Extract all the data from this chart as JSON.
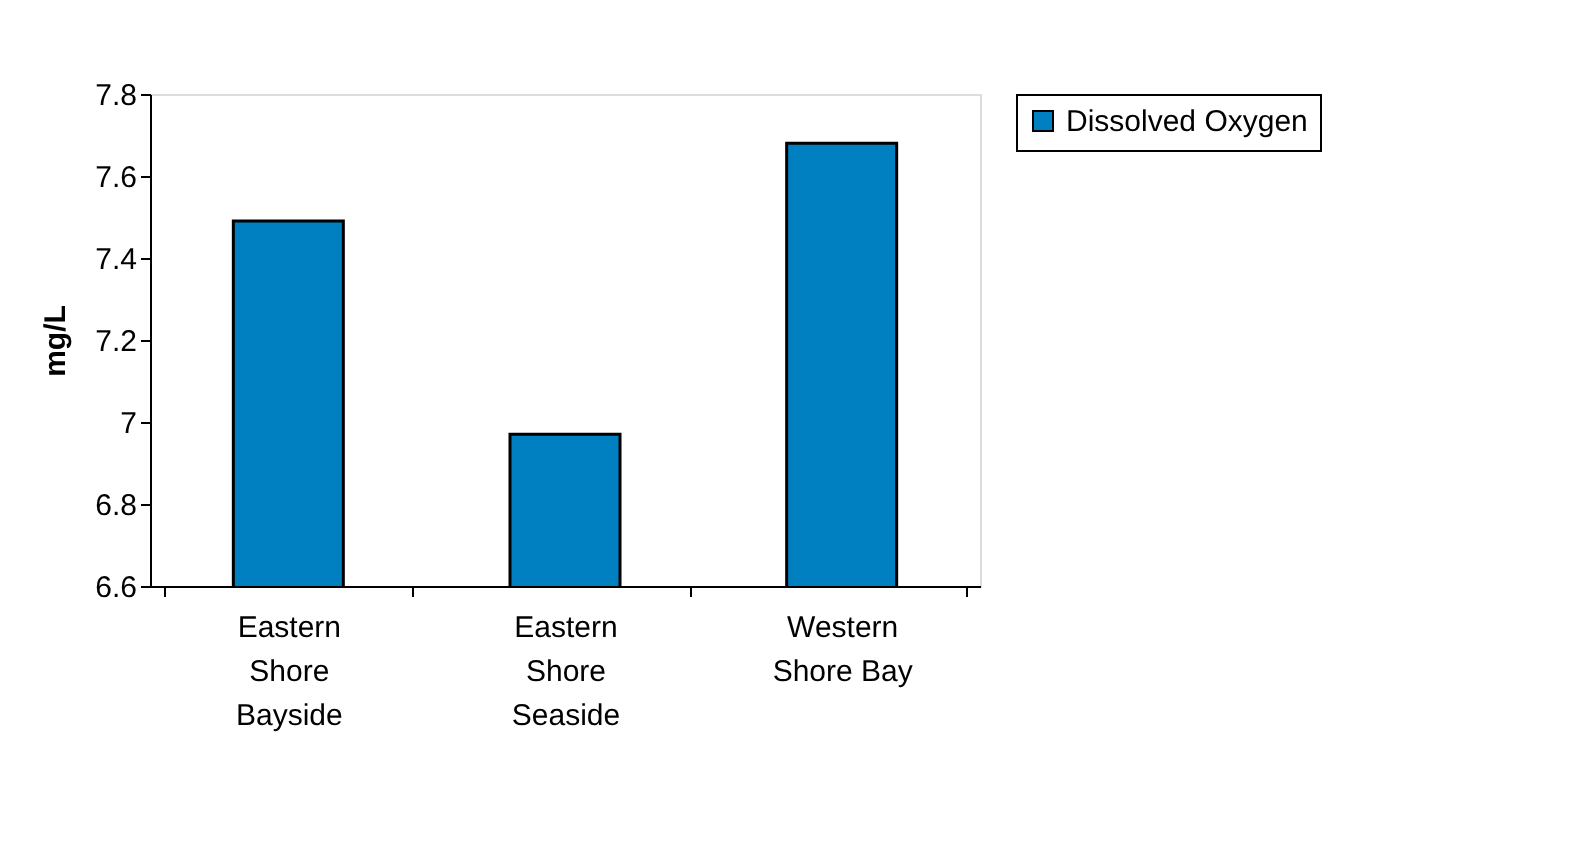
{
  "chart_data": {
    "type": "bar",
    "ylabel": "mg/L",
    "categories": [
      "Eastern Shore Bayside",
      "Eastern Shore Seaside",
      "Western Shore Bay"
    ],
    "series": [
      {
        "name": "Dissolved Oxygen",
        "color": "#0080c0",
        "values": [
          7.49,
          6.97,
          7.68
        ]
      }
    ],
    "ylim": [
      6.6,
      7.8
    ],
    "yticks": [
      6.6,
      6.8,
      7,
      7.2,
      7.4,
      7.6,
      7.8
    ],
    "grid": false,
    "legend": "right"
  }
}
